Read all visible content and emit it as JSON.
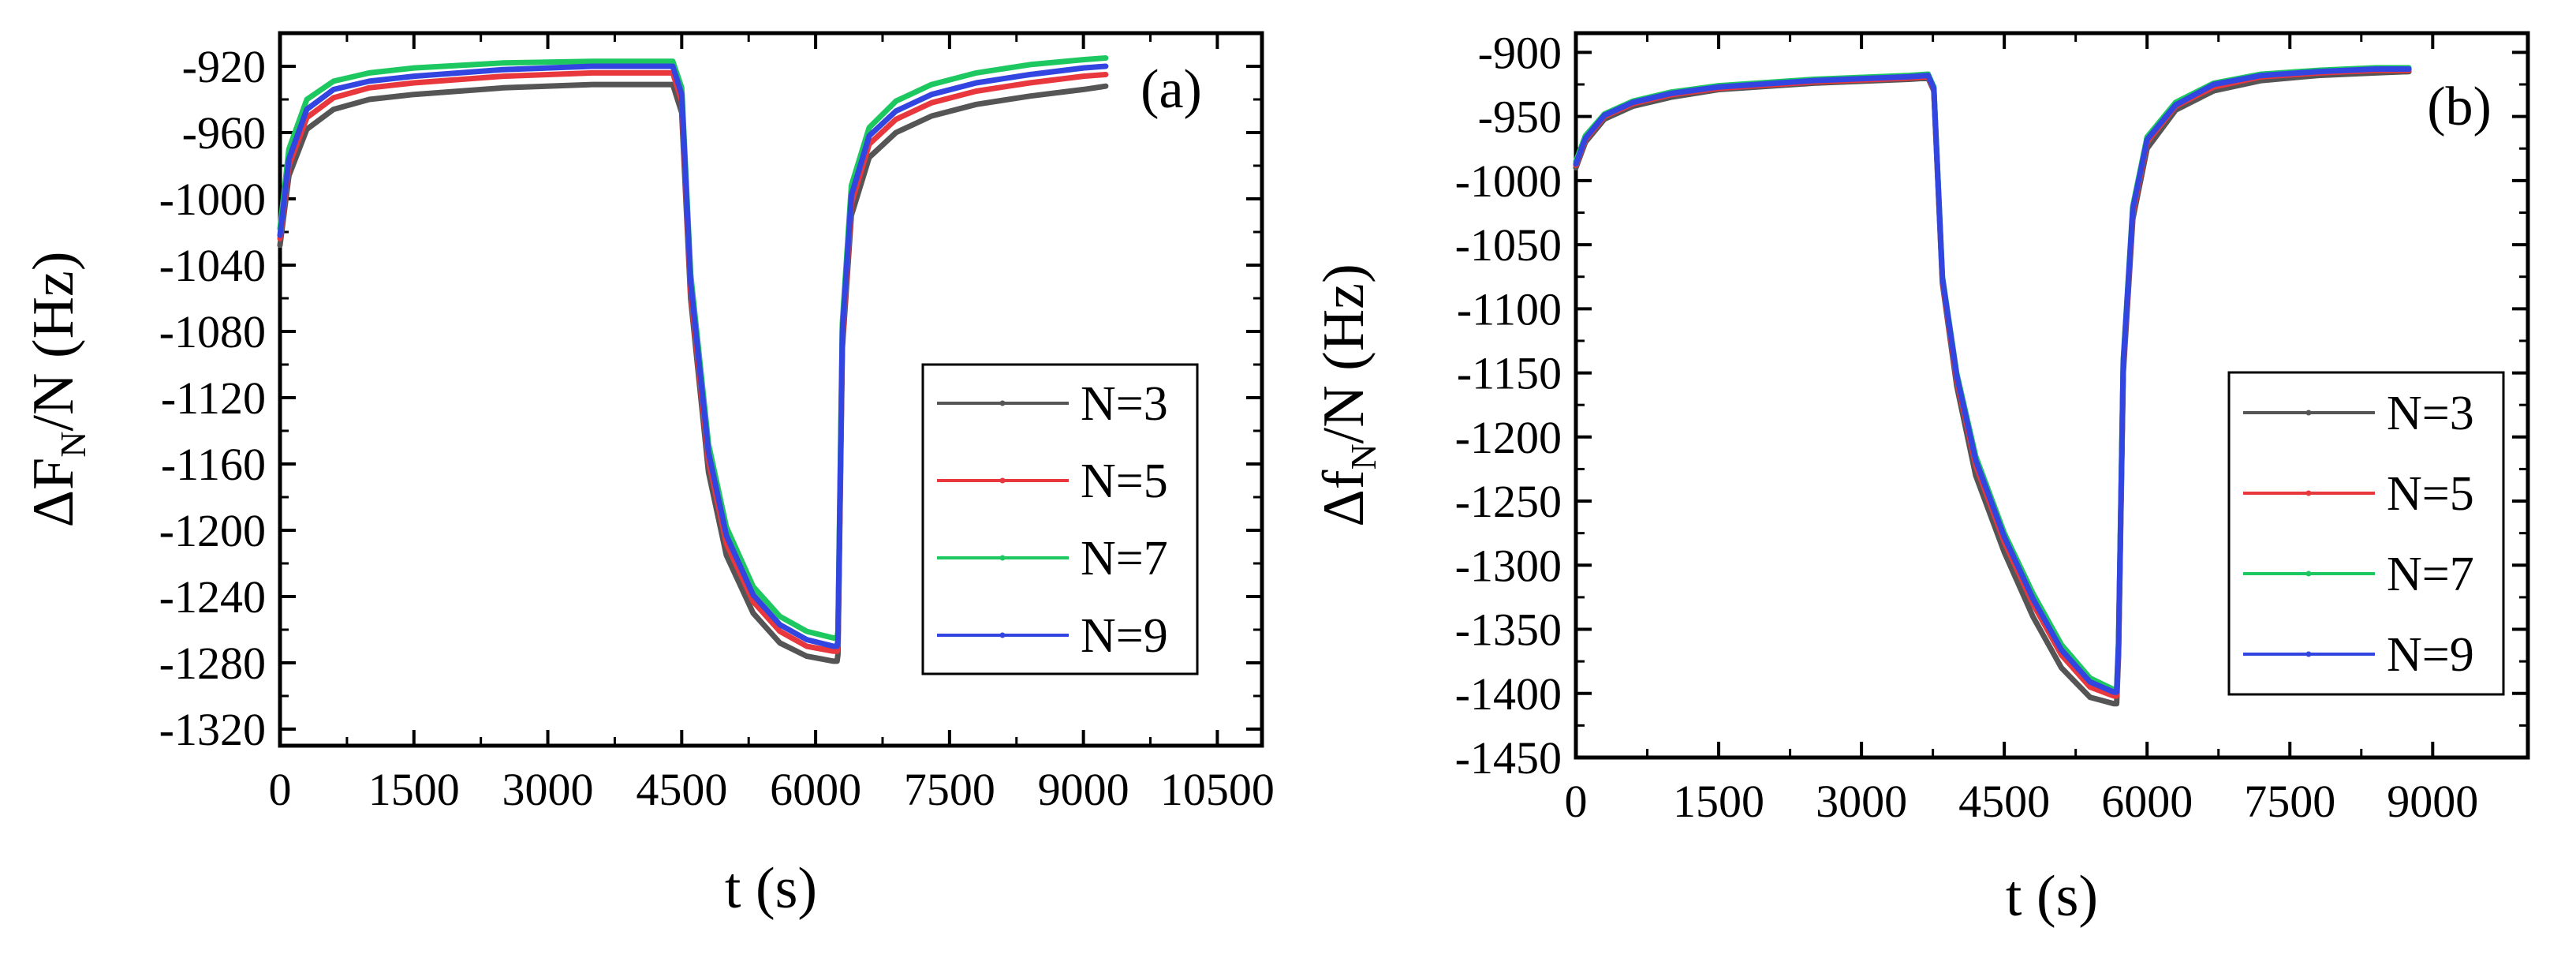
{
  "chart_data": [
    {
      "type": "line",
      "panel_label": "(a)",
      "xlabel": "t (s)",
      "ylabel": {
        "main": "ΔF",
        "sub": "N",
        "tail": "/N (Hz)"
      },
      "xlim": [
        0,
        11000
      ],
      "ylim": [
        -1330,
        -900
      ],
      "xticks": [
        0,
        1500,
        3000,
        4500,
        6000,
        7500,
        9000,
        10500
      ],
      "xtick_labels": [
        "0",
        "1500",
        "3000",
        "4500",
        "6000",
        "7500",
        "9000",
        "10500"
      ],
      "yticks": [
        -920,
        -960,
        -1000,
        -1040,
        -1080,
        -1120,
        -1160,
        -1200,
        -1240,
        -1280,
        -1320
      ],
      "ytick_labels": [
        "-920",
        "-960",
        "-1000",
        "-1040",
        "-1080",
        "-1120",
        "-1160",
        "-1200",
        "-1240",
        "-1280",
        "-1320"
      ],
      "legend": {
        "position": "right-center"
      },
      "series": [
        {
          "name": "N=3",
          "color": "#555555",
          "x": [
            0,
            100,
            300,
            600,
            1000,
            1500,
            2500,
            3500,
            4400,
            4500,
            4600,
            4800,
            5000,
            5300,
            5600,
            5900,
            6200,
            6240,
            6250,
            6300,
            6400,
            6600,
            6900,
            7300,
            7800,
            8400,
            9000,
            9250
          ],
          "y": [
            -1028,
            -986,
            -958,
            -946,
            -940,
            -937,
            -933,
            -931,
            -931,
            -948,
            -1060,
            -1165,
            -1215,
            -1250,
            -1268,
            -1276,
            -1279,
            -1279,
            -1275,
            -1090,
            -1010,
            -975,
            -960,
            -950,
            -943,
            -938,
            -934,
            -932
          ]
        },
        {
          "name": "N=5",
          "color": "#e8383d",
          "x": [
            0,
            100,
            300,
            600,
            1000,
            1500,
            2500,
            3500,
            4400,
            4500,
            4600,
            4800,
            5000,
            5300,
            5600,
            5900,
            6200,
            6240,
            6250,
            6300,
            6400,
            6600,
            6900,
            7300,
            7800,
            8400,
            9000,
            9250
          ],
          "y": [
            -1024,
            -980,
            -951,
            -939,
            -933,
            -930,
            -926,
            -924,
            -924,
            -941,
            -1055,
            -1158,
            -1208,
            -1243,
            -1261,
            -1270,
            -1273,
            -1273,
            -1269,
            -1085,
            -1003,
            -967,
            -952,
            -942,
            -935,
            -930,
            -926,
            -925
          ]
        },
        {
          "name": "N=7",
          "color": "#1ec860",
          "x": [
            0,
            100,
            300,
            600,
            1000,
            1500,
            2500,
            3500,
            4400,
            4500,
            4600,
            4800,
            5000,
            5300,
            5600,
            5900,
            6200,
            6240,
            6250,
            6300,
            6400,
            6600,
            6900,
            7300,
            7800,
            8400,
            9000,
            9250
          ],
          "y": [
            -1018,
            -970,
            -940,
            -929,
            -924,
            -921,
            -918,
            -917,
            -917,
            -933,
            -1045,
            -1148,
            -1198,
            -1234,
            -1252,
            -1261,
            -1265,
            -1265,
            -1261,
            -1075,
            -992,
            -957,
            -941,
            -931,
            -924,
            -919,
            -916,
            -915
          ]
        },
        {
          "name": "N=9",
          "color": "#3345e0",
          "x": [
            0,
            100,
            300,
            600,
            1000,
            1500,
            2500,
            3500,
            4400,
            4500,
            4600,
            4800,
            5000,
            5300,
            5600,
            5900,
            6200,
            6240,
            6250,
            6300,
            6400,
            6600,
            6900,
            7300,
            7800,
            8400,
            9000,
            9250
          ],
          "y": [
            -1022,
            -976,
            -946,
            -934,
            -929,
            -926,
            -922,
            -920,
            -920,
            -937,
            -1050,
            -1153,
            -1203,
            -1239,
            -1257,
            -1266,
            -1270,
            -1270,
            -1266,
            -1080,
            -998,
            -962,
            -947,
            -937,
            -930,
            -925,
            -921,
            -920
          ]
        }
      ]
    },
    {
      "type": "line",
      "panel_label": "(b)",
      "xlabel": "t (s)",
      "ylabel": {
        "main": "Δf",
        "sub": "N",
        "tail": "/N (Hz)"
      },
      "xlim": [
        0,
        10000
      ],
      "ylim": [
        -1450,
        -885
      ],
      "xticks": [
        0,
        1500,
        3000,
        4500,
        6000,
        7500,
        9000
      ],
      "xtick_labels": [
        "0",
        "1500",
        "3000",
        "4500",
        "6000",
        "7500",
        "9000"
      ],
      "yticks": [
        -900,
        -950,
        -1000,
        -1050,
        -1100,
        -1150,
        -1200,
        -1250,
        -1300,
        -1350,
        -1400,
        -1450
      ],
      "ytick_labels": [
        "-900",
        "-950",
        "-1000",
        "-1050",
        "-1100",
        "-1150",
        "-1200",
        "-1250",
        "-1300",
        "-1350",
        "-1400",
        "-1450"
      ],
      "legend": {
        "position": "right-center"
      },
      "series": [
        {
          "name": "N=3",
          "color": "#555555",
          "x": [
            0,
            100,
            300,
            600,
            1000,
            1500,
            2500,
            3500,
            3700,
            3760,
            3850,
            4000,
            4200,
            4500,
            4800,
            5100,
            5400,
            5650,
            5680,
            5700,
            5750,
            5850,
            6000,
            6300,
            6700,
            7200,
            7800,
            8400,
            8750
          ],
          "y": [
            -990,
            -970,
            -952,
            -942,
            -935,
            -929,
            -924,
            -921,
            -920,
            -930,
            -1080,
            -1160,
            -1230,
            -1290,
            -1340,
            -1380,
            -1403,
            -1408,
            -1408,
            -1370,
            -1150,
            -1030,
            -975,
            -945,
            -930,
            -922,
            -918,
            -916,
            -915
          ]
        },
        {
          "name": "N=5",
          "color": "#e8383d",
          "x": [
            0,
            100,
            300,
            600,
            1000,
            1500,
            2500,
            3500,
            3700,
            3760,
            3850,
            4000,
            4200,
            4500,
            4800,
            5100,
            5400,
            5650,
            5680,
            5700,
            5750,
            5850,
            6000,
            6300,
            6700,
            7200,
            7800,
            8400,
            8750
          ],
          "y": [
            -988,
            -968,
            -950,
            -940,
            -933,
            -928,
            -923,
            -920,
            -919,
            -929,
            -1078,
            -1155,
            -1222,
            -1282,
            -1330,
            -1370,
            -1395,
            -1402,
            -1402,
            -1365,
            -1145,
            -1025,
            -970,
            -942,
            -927,
            -919,
            -916,
            -914,
            -914
          ]
        },
        {
          "name": "N=7",
          "color": "#1ec860",
          "x": [
            0,
            100,
            300,
            600,
            1000,
            1500,
            2500,
            3500,
            3700,
            3760,
            3850,
            4000,
            4200,
            4500,
            4800,
            5100,
            5400,
            5650,
            5680,
            5700,
            5750,
            5850,
            6000,
            6300,
            6700,
            7200,
            7800,
            8400,
            8750
          ],
          "y": [
            -985,
            -965,
            -948,
            -938,
            -931,
            -926,
            -921,
            -918,
            -917,
            -927,
            -1075,
            -1150,
            -1215,
            -1275,
            -1322,
            -1362,
            -1388,
            -1397,
            -1397,
            -1360,
            -1140,
            -1020,
            -966,
            -939,
            -924,
            -917,
            -914,
            -912,
            -912
          ]
        },
        {
          "name": "N=9",
          "color": "#3345e0",
          "x": [
            0,
            100,
            300,
            600,
            1000,
            1500,
            2500,
            3500,
            3700,
            3760,
            3850,
            4000,
            4200,
            4500,
            4800,
            5100,
            5400,
            5650,
            5680,
            5700,
            5750,
            5850,
            6000,
            6300,
            6700,
            7200,
            7800,
            8400,
            8750
          ],
          "y": [
            -987,
            -967,
            -949,
            -939,
            -932,
            -927,
            -922,
            -919,
            -918,
            -928,
            -1076,
            -1152,
            -1218,
            -1278,
            -1326,
            -1366,
            -1391,
            -1399,
            -1399,
            -1362,
            -1142,
            -1022,
            -968,
            -941,
            -925,
            -918,
            -915,
            -913,
            -913
          ]
        }
      ]
    }
  ]
}
